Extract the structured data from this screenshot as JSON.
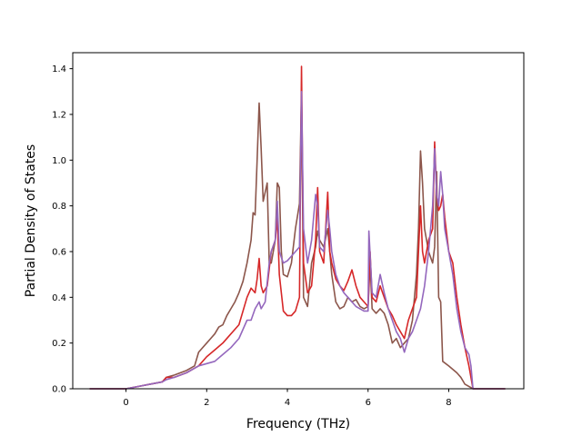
{
  "chart_data": {
    "type": "line",
    "title": "",
    "xlabel": "Frequency (THz)",
    "ylabel": "Partial Density of States",
    "xlim": [
      -1.32,
      9.86
    ],
    "ylim": [
      0.0,
      1.47
    ],
    "xticks": [
      0,
      2,
      4,
      6,
      8
    ],
    "yticks": [
      0.0,
      0.2,
      0.4,
      0.6,
      0.8,
      1.0,
      1.2,
      1.4
    ],
    "grid": false,
    "legend": "none",
    "series": [
      {
        "color": "#8c564b",
        "points": [
          [
            -0.9,
            0
          ],
          [
            0,
            0
          ],
          [
            0.3,
            0.01
          ],
          [
            0.6,
            0.02
          ],
          [
            0.9,
            0.03
          ],
          [
            1.0,
            0.05
          ],
          [
            1.2,
            0.06
          ],
          [
            1.5,
            0.08
          ],
          [
            1.7,
            0.1
          ],
          [
            1.8,
            0.16
          ],
          [
            2.0,
            0.2
          ],
          [
            2.1,
            0.22
          ],
          [
            2.2,
            0.24
          ],
          [
            2.3,
            0.27
          ],
          [
            2.4,
            0.28
          ],
          [
            2.5,
            0.32
          ],
          [
            2.6,
            0.35
          ],
          [
            2.7,
            0.38
          ],
          [
            2.8,
            0.42
          ],
          [
            2.9,
            0.47
          ],
          [
            3.0,
            0.55
          ],
          [
            3.1,
            0.65
          ],
          [
            3.15,
            0.77
          ],
          [
            3.2,
            0.76
          ],
          [
            3.25,
            1.0
          ],
          [
            3.3,
            1.25
          ],
          [
            3.35,
            1.05
          ],
          [
            3.4,
            0.82
          ],
          [
            3.5,
            0.9
          ],
          [
            3.55,
            0.55
          ],
          [
            3.6,
            0.55
          ],
          [
            3.7,
            0.65
          ],
          [
            3.75,
            0.9
          ],
          [
            3.8,
            0.88
          ],
          [
            3.85,
            0.6
          ],
          [
            3.9,
            0.5
          ],
          [
            4.0,
            0.49
          ],
          [
            4.1,
            0.55
          ],
          [
            4.2,
            0.7
          ],
          [
            4.3,
            0.81
          ],
          [
            4.35,
            1.3
          ],
          [
            4.4,
            0.4
          ],
          [
            4.5,
            0.36
          ],
          [
            4.6,
            0.55
          ],
          [
            4.7,
            0.62
          ],
          [
            4.75,
            0.69
          ],
          [
            4.8,
            0.65
          ],
          [
            4.9,
            0.62
          ],
          [
            5.0,
            0.7
          ],
          [
            5.1,
            0.5
          ],
          [
            5.2,
            0.38
          ],
          [
            5.3,
            0.35
          ],
          [
            5.4,
            0.36
          ],
          [
            5.5,
            0.4
          ],
          [
            5.6,
            0.38
          ],
          [
            5.7,
            0.39
          ],
          [
            5.8,
            0.36
          ],
          [
            5.9,
            0.35
          ],
          [
            6.0,
            0.36
          ],
          [
            6.05,
            0.55
          ],
          [
            6.1,
            0.35
          ],
          [
            6.2,
            0.33
          ],
          [
            6.3,
            0.35
          ],
          [
            6.4,
            0.33
          ],
          [
            6.5,
            0.28
          ],
          [
            6.6,
            0.2
          ],
          [
            6.7,
            0.22
          ],
          [
            6.8,
            0.18
          ],
          [
            6.9,
            0.2
          ],
          [
            7.0,
            0.22
          ],
          [
            7.1,
            0.3
          ],
          [
            7.2,
            0.5
          ],
          [
            7.25,
            0.7
          ],
          [
            7.3,
            1.04
          ],
          [
            7.35,
            0.9
          ],
          [
            7.4,
            0.7
          ],
          [
            7.5,
            0.6
          ],
          [
            7.6,
            0.55
          ],
          [
            7.65,
            0.62
          ],
          [
            7.7,
            0.95
          ],
          [
            7.75,
            0.4
          ],
          [
            7.8,
            0.38
          ],
          [
            7.85,
            0.12
          ],
          [
            8.0,
            0.1
          ],
          [
            8.2,
            0.07
          ],
          [
            8.3,
            0.05
          ],
          [
            8.4,
            0.02
          ],
          [
            8.6,
            0.0
          ],
          [
            9.4,
            0
          ]
        ]
      },
      {
        "color": "#d62728",
        "points": [
          [
            -0.9,
            0
          ],
          [
            0,
            0
          ],
          [
            0.3,
            0.01
          ],
          [
            0.6,
            0.02
          ],
          [
            0.9,
            0.03
          ],
          [
            1.0,
            0.05
          ],
          [
            1.2,
            0.05
          ],
          [
            1.5,
            0.07
          ],
          [
            1.8,
            0.1
          ],
          [
            2.0,
            0.14
          ],
          [
            2.2,
            0.17
          ],
          [
            2.4,
            0.2
          ],
          [
            2.6,
            0.24
          ],
          [
            2.8,
            0.28
          ],
          [
            3.0,
            0.4
          ],
          [
            3.1,
            0.44
          ],
          [
            3.2,
            0.42
          ],
          [
            3.25,
            0.48
          ],
          [
            3.3,
            0.57
          ],
          [
            3.35,
            0.45
          ],
          [
            3.4,
            0.42
          ],
          [
            3.5,
            0.45
          ],
          [
            3.6,
            0.6
          ],
          [
            3.7,
            0.65
          ],
          [
            3.75,
            0.75
          ],
          [
            3.8,
            0.5
          ],
          [
            3.9,
            0.34
          ],
          [
            4.0,
            0.32
          ],
          [
            4.1,
            0.32
          ],
          [
            4.2,
            0.34
          ],
          [
            4.3,
            0.4
          ],
          [
            4.35,
            1.41
          ],
          [
            4.4,
            0.55
          ],
          [
            4.5,
            0.42
          ],
          [
            4.6,
            0.45
          ],
          [
            4.7,
            0.65
          ],
          [
            4.75,
            0.88
          ],
          [
            4.8,
            0.6
          ],
          [
            4.9,
            0.55
          ],
          [
            5.0,
            0.86
          ],
          [
            5.05,
            0.6
          ],
          [
            5.1,
            0.55
          ],
          [
            5.2,
            0.48
          ],
          [
            5.3,
            0.45
          ],
          [
            5.4,
            0.43
          ],
          [
            5.5,
            0.47
          ],
          [
            5.6,
            0.52
          ],
          [
            5.7,
            0.45
          ],
          [
            5.8,
            0.4
          ],
          [
            5.9,
            0.38
          ],
          [
            6.0,
            0.36
          ],
          [
            6.05,
            0.6
          ],
          [
            6.1,
            0.4
          ],
          [
            6.2,
            0.38
          ],
          [
            6.3,
            0.45
          ],
          [
            6.4,
            0.4
          ],
          [
            6.5,
            0.35
          ],
          [
            6.6,
            0.32
          ],
          [
            6.7,
            0.28
          ],
          [
            6.8,
            0.25
          ],
          [
            6.9,
            0.22
          ],
          [
            7.0,
            0.3
          ],
          [
            7.1,
            0.35
          ],
          [
            7.2,
            0.4
          ],
          [
            7.25,
            0.6
          ],
          [
            7.3,
            0.8
          ],
          [
            7.35,
            0.6
          ],
          [
            7.4,
            0.55
          ],
          [
            7.5,
            0.65
          ],
          [
            7.6,
            0.7
          ],
          [
            7.65,
            1.08
          ],
          [
            7.7,
            0.85
          ],
          [
            7.75,
            0.78
          ],
          [
            7.8,
            0.8
          ],
          [
            7.85,
            0.85
          ],
          [
            7.9,
            0.75
          ],
          [
            8.0,
            0.6
          ],
          [
            8.1,
            0.55
          ],
          [
            8.2,
            0.4
          ],
          [
            8.3,
            0.28
          ],
          [
            8.4,
            0.18
          ],
          [
            8.5,
            0.1
          ],
          [
            8.6,
            0.0
          ],
          [
            9.4,
            0
          ]
        ]
      },
      {
        "color": "#9467bd",
        "points": [
          [
            -0.9,
            0
          ],
          [
            0,
            0
          ],
          [
            0.3,
            0.01
          ],
          [
            0.6,
            0.02
          ],
          [
            0.9,
            0.03
          ],
          [
            1.0,
            0.04
          ],
          [
            1.2,
            0.05
          ],
          [
            1.5,
            0.07
          ],
          [
            1.8,
            0.1
          ],
          [
            2.0,
            0.11
          ],
          [
            2.2,
            0.12
          ],
          [
            2.4,
            0.15
          ],
          [
            2.6,
            0.18
          ],
          [
            2.8,
            0.22
          ],
          [
            3.0,
            0.3
          ],
          [
            3.1,
            0.3
          ],
          [
            3.2,
            0.35
          ],
          [
            3.3,
            0.38
          ],
          [
            3.35,
            0.35
          ],
          [
            3.45,
            0.38
          ],
          [
            3.55,
            0.55
          ],
          [
            3.6,
            0.6
          ],
          [
            3.7,
            0.65
          ],
          [
            3.75,
            0.82
          ],
          [
            3.8,
            0.6
          ],
          [
            3.9,
            0.55
          ],
          [
            4.0,
            0.56
          ],
          [
            4.1,
            0.58
          ],
          [
            4.2,
            0.6
          ],
          [
            4.3,
            0.62
          ],
          [
            4.35,
            1.3
          ],
          [
            4.4,
            0.7
          ],
          [
            4.5,
            0.55
          ],
          [
            4.6,
            0.65
          ],
          [
            4.7,
            0.85
          ],
          [
            4.75,
            0.8
          ],
          [
            4.8,
            0.62
          ],
          [
            4.9,
            0.6
          ],
          [
            5.0,
            0.78
          ],
          [
            5.05,
            0.7
          ],
          [
            5.1,
            0.6
          ],
          [
            5.2,
            0.5
          ],
          [
            5.3,
            0.45
          ],
          [
            5.4,
            0.42
          ],
          [
            5.5,
            0.4
          ],
          [
            5.6,
            0.38
          ],
          [
            5.7,
            0.36
          ],
          [
            5.8,
            0.35
          ],
          [
            5.9,
            0.34
          ],
          [
            6.0,
            0.34
          ],
          [
            6.02,
            0.69
          ],
          [
            6.1,
            0.42
          ],
          [
            6.2,
            0.4
          ],
          [
            6.3,
            0.5
          ],
          [
            6.4,
            0.42
          ],
          [
            6.5,
            0.35
          ],
          [
            6.6,
            0.3
          ],
          [
            6.7,
            0.25
          ],
          [
            6.8,
            0.22
          ],
          [
            6.9,
            0.16
          ],
          [
            7.0,
            0.22
          ],
          [
            7.1,
            0.25
          ],
          [
            7.2,
            0.3
          ],
          [
            7.3,
            0.35
          ],
          [
            7.4,
            0.45
          ],
          [
            7.5,
            0.6
          ],
          [
            7.6,
            0.8
          ],
          [
            7.65,
            1.05
          ],
          [
            7.7,
            0.85
          ],
          [
            7.75,
            0.8
          ],
          [
            7.8,
            0.95
          ],
          [
            7.85,
            0.85
          ],
          [
            7.9,
            0.7
          ],
          [
            8.0,
            0.6
          ],
          [
            8.1,
            0.5
          ],
          [
            8.2,
            0.35
          ],
          [
            8.3,
            0.25
          ],
          [
            8.4,
            0.18
          ],
          [
            8.5,
            0.15
          ],
          [
            8.55,
            0.1
          ],
          [
            8.6,
            0.0
          ],
          [
            9.4,
            0
          ]
        ]
      }
    ]
  }
}
